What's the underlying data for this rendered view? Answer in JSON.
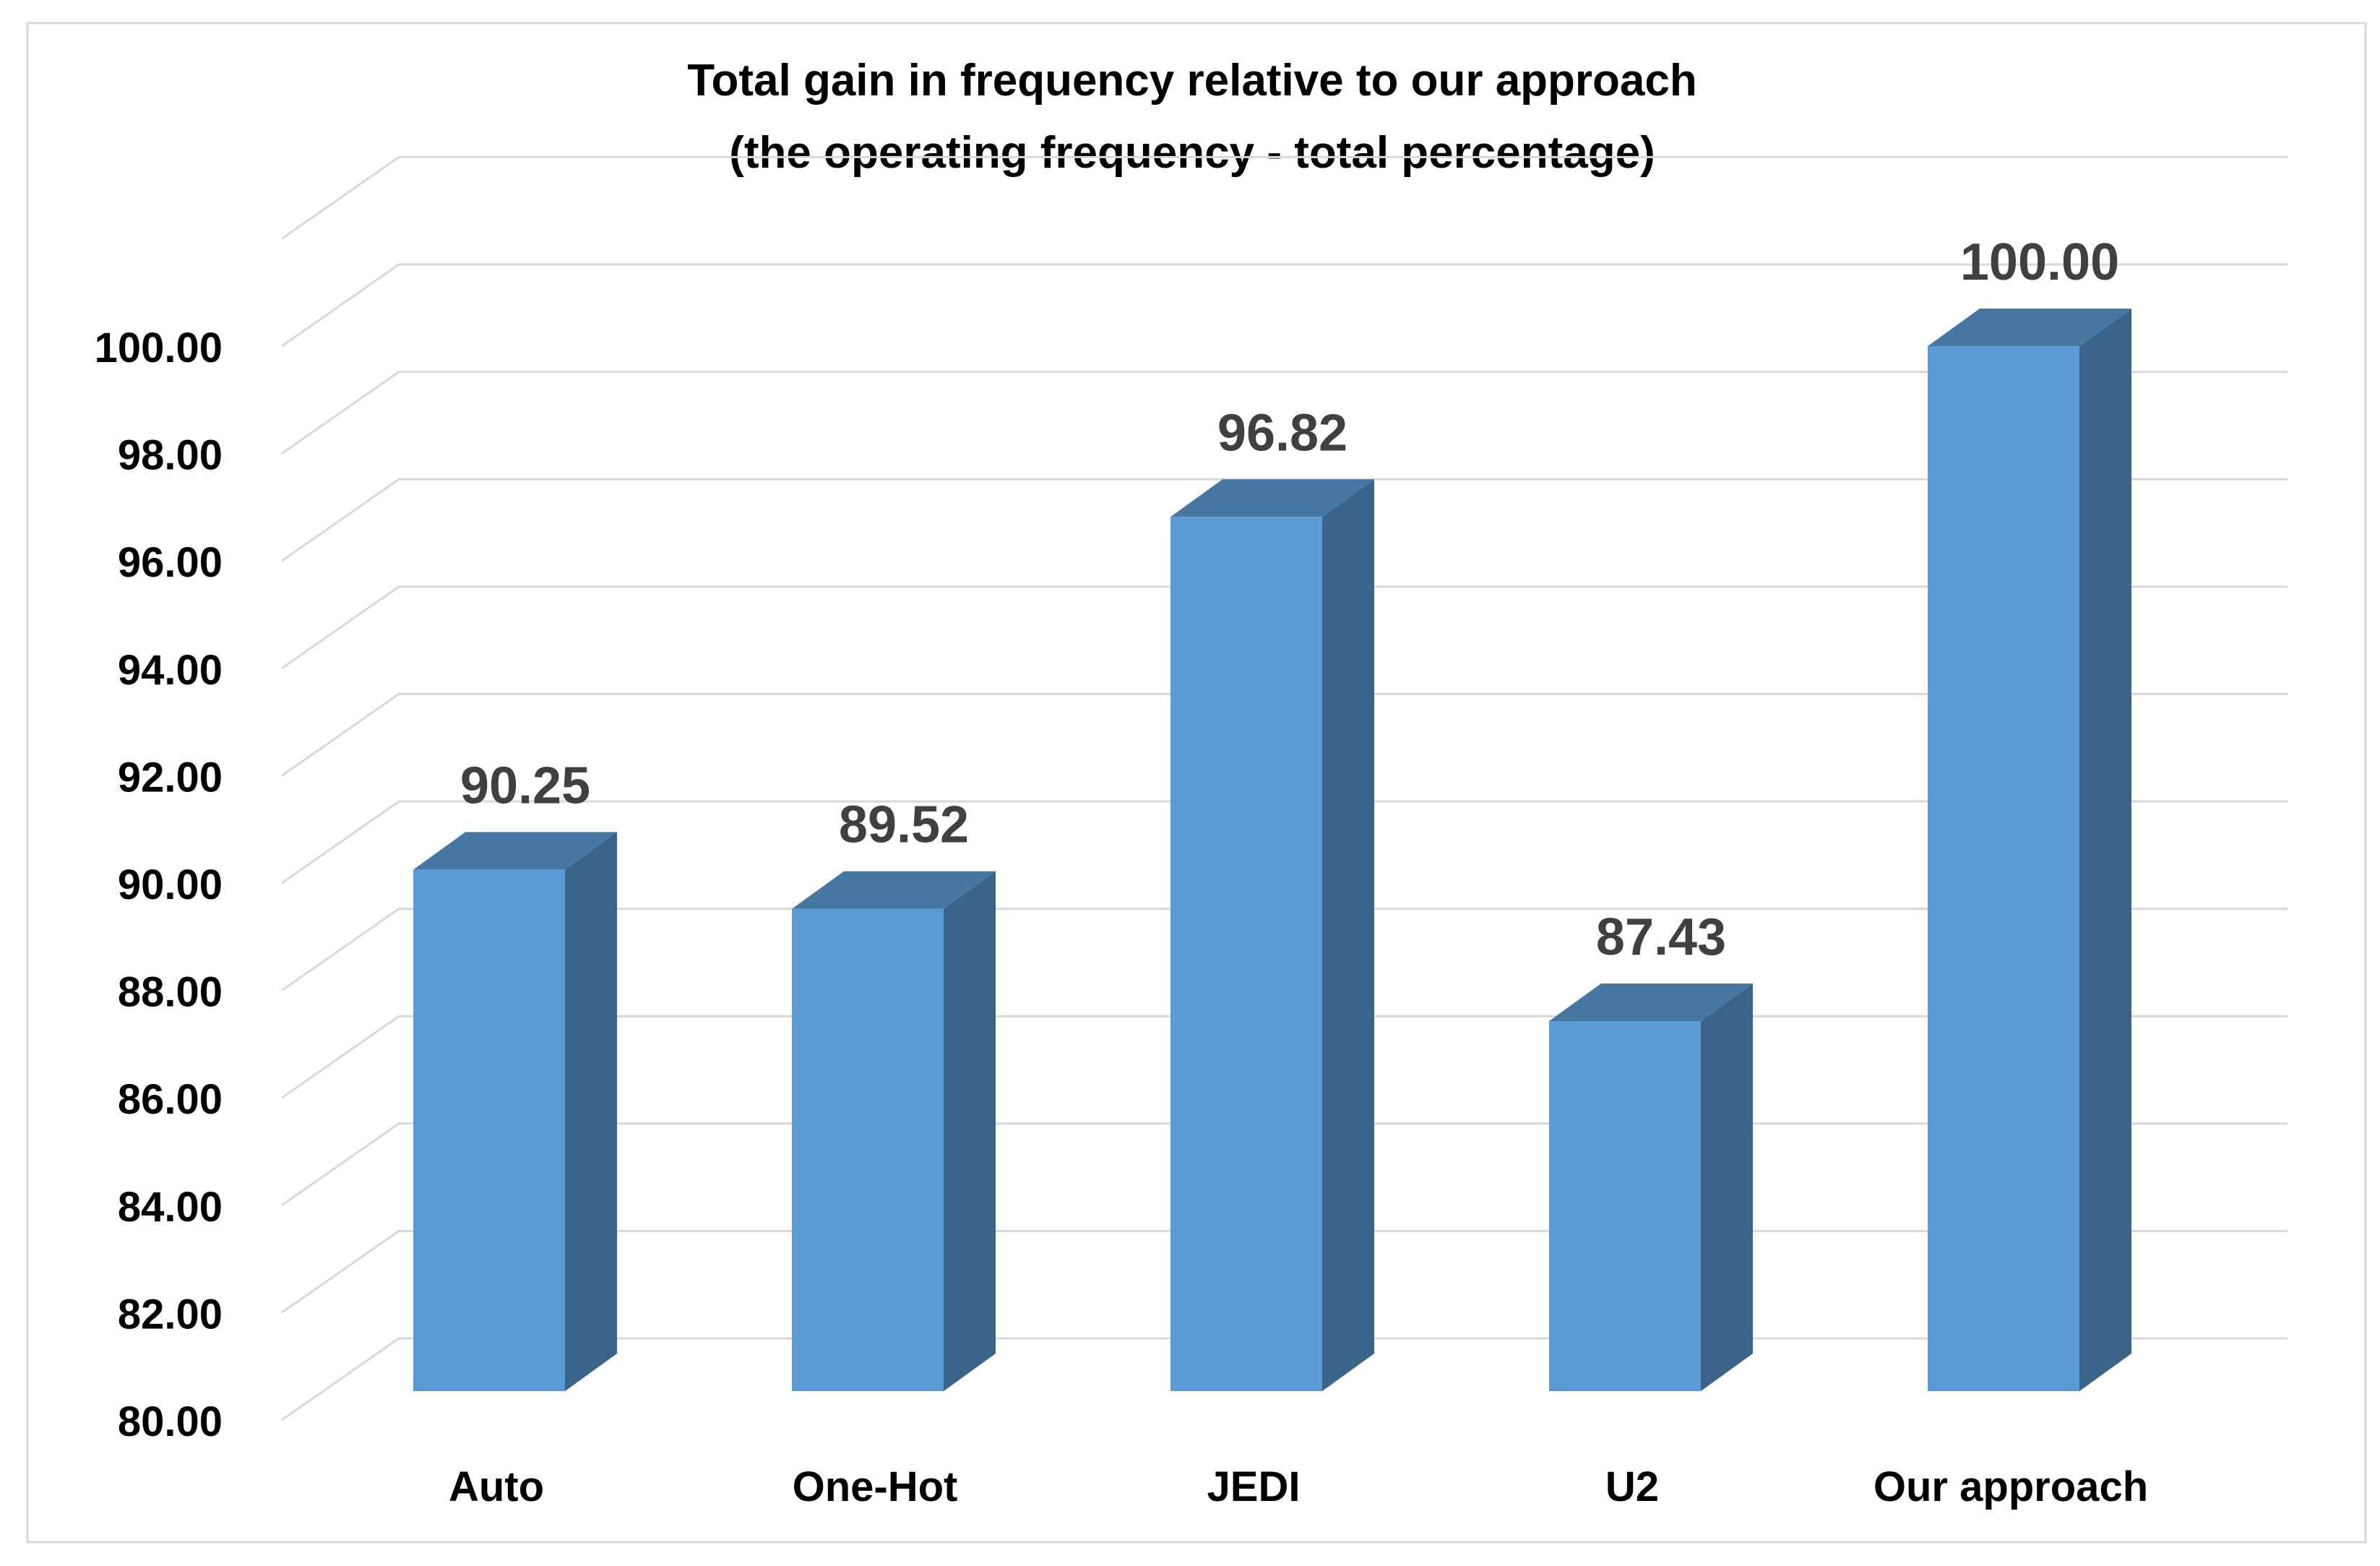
{
  "chart_data": {
    "type": "bar",
    "title_line1": "Total gain in frequency relative to our approach",
    "title_line2": "(the operating frequency - total percentage)",
    "xlabel": "",
    "ylabel": "",
    "categories": [
      "Auto",
      "One-Hot",
      "JEDI",
      "U2",
      "Our approach"
    ],
    "values": [
      90.25,
      89.52,
      96.82,
      87.43,
      100.0
    ],
    "value_labels": [
      "90.25",
      "89.52",
      "96.82",
      "87.43",
      "100.00"
    ],
    "ylim": [
      80,
      102
    ],
    "yticks": [
      80,
      82,
      84,
      86,
      88,
      90,
      92,
      94,
      96,
      98,
      100
    ],
    "ytick_labels": [
      "80.00",
      "82.00",
      "84.00",
      "86.00",
      "88.00",
      "90.00",
      "92.00",
      "94.00",
      "96.00",
      "98.00",
      "100.00"
    ],
    "grid": true,
    "style": "3d-column",
    "colors": {
      "bar_front": "#5B9BD5",
      "bar_side": "#3A6489",
      "bar_top": "#4677A3",
      "grid": "#D9D9D9",
      "text": "#000000",
      "value_label": "#404040",
      "border": "#D9D9D9"
    }
  }
}
